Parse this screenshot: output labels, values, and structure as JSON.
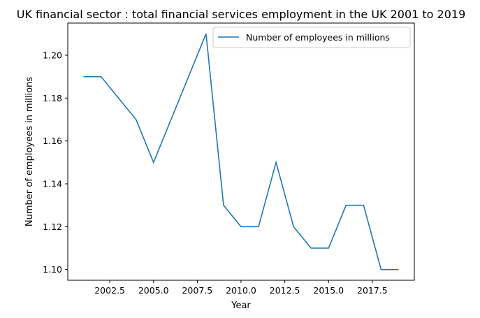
{
  "chart_data": {
    "type": "line",
    "title": "UK financial sector : total financial services employment in the UK 2001 to 2019",
    "xlabel": "Year",
    "ylabel": "Number of employees in millions",
    "x": [
      2001,
      2002,
      2003,
      2004,
      2005,
      2006,
      2007,
      2008,
      2009,
      2010,
      2011,
      2012,
      2013,
      2014,
      2015,
      2016,
      2017,
      2018,
      2019
    ],
    "series": [
      {
        "name": "Number of employees in millions",
        "color": "#1f77b4",
        "values": [
          1.19,
          1.19,
          1.18,
          1.17,
          1.15,
          1.17,
          1.19,
          1.21,
          1.13,
          1.12,
          1.12,
          1.15,
          1.12,
          1.11,
          1.11,
          1.13,
          1.13,
          1.1,
          1.1
        ]
      }
    ],
    "xlim": [
      2000.1,
      2019.9
    ],
    "ylim": [
      1.095,
      1.215
    ],
    "x_ticks": [
      2002.5,
      2005.0,
      2007.5,
      2010.0,
      2012.5,
      2015.0,
      2017.5
    ],
    "x_tick_labels": [
      "2002.5",
      "2005.0",
      "2007.5",
      "2010.0",
      "2012.5",
      "2015.0",
      "2017.5"
    ],
    "y_ticks": [
      1.1,
      1.12,
      1.14,
      1.16,
      1.18,
      1.2
    ],
    "y_tick_labels": [
      "1.10",
      "1.12",
      "1.14",
      "1.16",
      "1.18",
      "1.20"
    ],
    "grid": false,
    "legend_position": "upper-right"
  }
}
